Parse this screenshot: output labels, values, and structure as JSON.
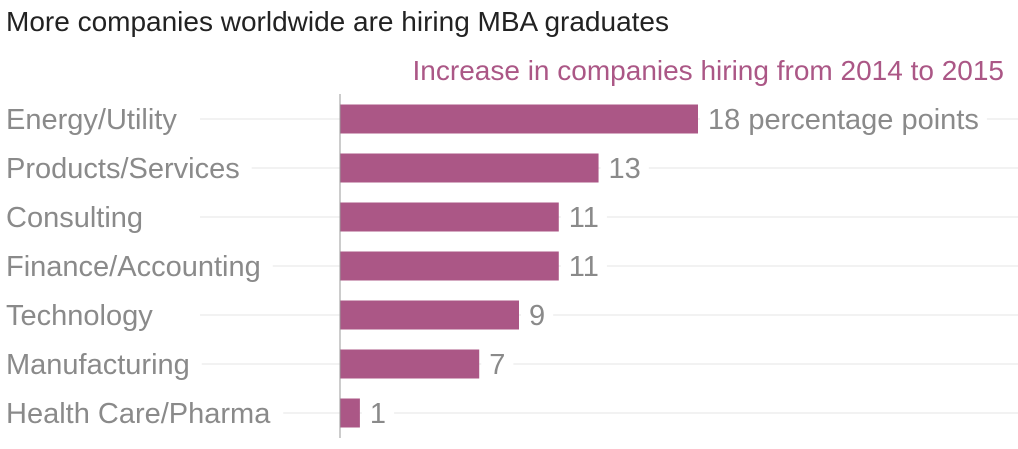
{
  "chart_data": {
    "type": "bar",
    "orientation": "horizontal",
    "title": "More companies worldwide are hiring MBA graduates",
    "subtitle": "Increase in companies hiring from 2014 to 2015",
    "categories": [
      "Energy/Utility",
      "Products/Services",
      "Consulting",
      "Finance/Accounting",
      "Technology",
      "Manufacturing",
      "Health Care/Pharma"
    ],
    "values": [
      18,
      13,
      11,
      11,
      9,
      7,
      1
    ],
    "value_labels": [
      "18 percentage points",
      "13",
      "11",
      "11",
      "9",
      "7",
      "1"
    ],
    "xlim": [
      0,
      18
    ],
    "grid": true,
    "legend": "none",
    "colors": {
      "bar": "#ab5786",
      "subtitle": "#ab5786",
      "text": "#8a8a8a",
      "title": "#222222",
      "grid": "#e6e6e6",
      "axis": "#999999"
    }
  }
}
